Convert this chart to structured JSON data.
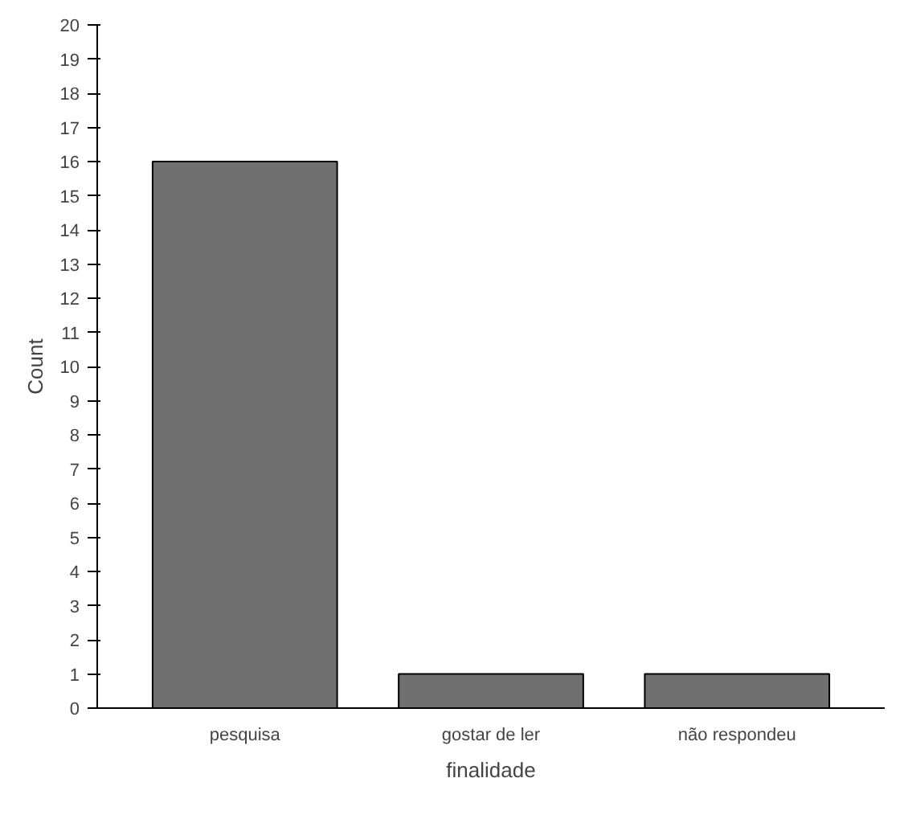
{
  "chart_data": {
    "type": "bar",
    "xlabel": "finalidade",
    "ylabel": "Count",
    "categories": [
      "pesquisa",
      "gostar de ler",
      "não respondeu"
    ],
    "values": [
      16,
      1,
      1
    ],
    "color": "#707070",
    "ylim": [
      0,
      20
    ],
    "yticks": [
      0,
      1,
      2,
      3,
      4,
      5,
      6,
      7,
      8,
      9,
      10,
      11,
      12,
      13,
      14,
      15,
      16,
      17,
      18,
      19,
      20
    ],
    "grid": false
  }
}
